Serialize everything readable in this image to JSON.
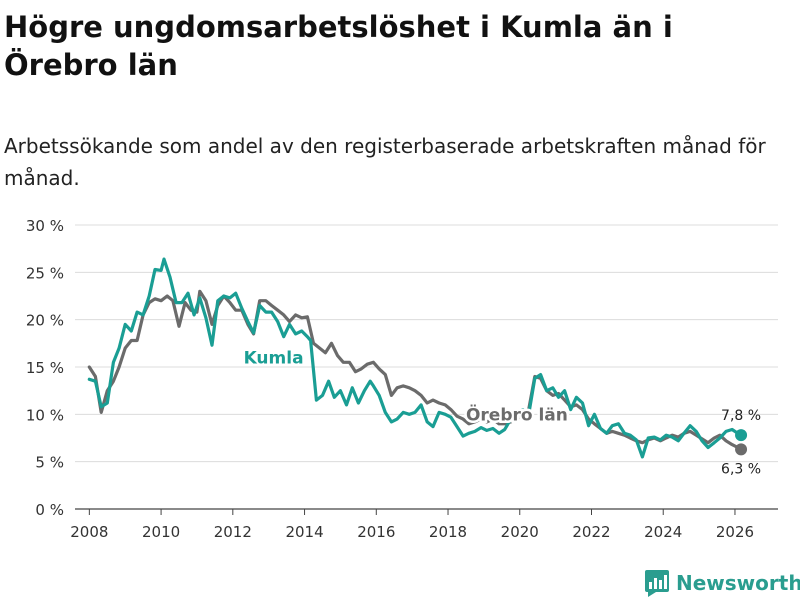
{
  "title": "Högre ungdomsarbetslöshet i Kumla än i Örebro län",
  "subtitle": "Arbetssökande som andel av den registerbaserade arbetskraften månad för månad.",
  "brand": {
    "name": "Newsworthy",
    "color": "#2a9d8f"
  },
  "chart_data": {
    "type": "line",
    "title": "Högre ungdomsarbetslöshet i Kumla än i Örebro län",
    "xlabel": "",
    "ylabel": "",
    "xlim": [
      2007.6,
      2027.2
    ],
    "ylim": [
      0,
      30
    ],
    "grid": true,
    "x_ticks": [
      2008,
      2010,
      2012,
      2014,
      2016,
      2018,
      2020,
      2022,
      2024,
      2026
    ],
    "y_ticks": [
      0,
      5,
      10,
      15,
      20,
      25,
      30
    ],
    "y_tick_labels": [
      "0 %",
      "5 %",
      "10 %",
      "15 %",
      "20 %",
      "25 %",
      "30 %"
    ],
    "end_labels": {
      "kumla": "7,8 %",
      "orebro": "6,3 %"
    },
    "series": [
      {
        "name": "Kumla",
        "color": "#1a9e94",
        "points": [
          [
            2008.0,
            13.7
          ],
          [
            2008.17,
            13.5
          ],
          [
            2008.33,
            10.8
          ],
          [
            2008.5,
            11.2
          ],
          [
            2008.67,
            15.5
          ],
          [
            2008.83,
            17.0
          ],
          [
            2009.0,
            19.5
          ],
          [
            2009.17,
            18.8
          ],
          [
            2009.33,
            20.8
          ],
          [
            2009.5,
            20.5
          ],
          [
            2009.67,
            22.5
          ],
          [
            2009.83,
            25.3
          ],
          [
            2010.0,
            25.2
          ],
          [
            2010.08,
            26.4
          ],
          [
            2010.25,
            24.5
          ],
          [
            2010.42,
            21.8
          ],
          [
            2010.58,
            21.8
          ],
          [
            2010.75,
            22.8
          ],
          [
            2010.92,
            20.5
          ],
          [
            2011.08,
            22.3
          ],
          [
            2011.25,
            20.2
          ],
          [
            2011.42,
            17.3
          ],
          [
            2011.58,
            22.0
          ],
          [
            2011.75,
            22.5
          ],
          [
            2011.92,
            22.3
          ],
          [
            2012.08,
            22.8
          ],
          [
            2012.25,
            21.2
          ],
          [
            2012.42,
            19.8
          ],
          [
            2012.58,
            18.6
          ],
          [
            2012.75,
            21.5
          ],
          [
            2012.92,
            20.8
          ],
          [
            2013.08,
            20.8
          ],
          [
            2013.25,
            19.8
          ],
          [
            2013.42,
            18.2
          ],
          [
            2013.58,
            19.5
          ],
          [
            2013.75,
            18.5
          ],
          [
            2013.92,
            18.8
          ],
          [
            2014.08,
            18.2
          ],
          [
            2014.17,
            17.8
          ],
          [
            2014.33,
            11.5
          ],
          [
            2014.5,
            12.0
          ],
          [
            2014.67,
            13.5
          ],
          [
            2014.83,
            11.8
          ],
          [
            2015.0,
            12.5
          ],
          [
            2015.17,
            11.0
          ],
          [
            2015.33,
            12.8
          ],
          [
            2015.5,
            11.2
          ],
          [
            2015.67,
            12.5
          ],
          [
            2015.83,
            13.5
          ],
          [
            2015.92,
            13.0
          ],
          [
            2016.08,
            12.0
          ],
          [
            2016.25,
            10.2
          ],
          [
            2016.42,
            9.2
          ],
          [
            2016.58,
            9.5
          ],
          [
            2016.75,
            10.2
          ],
          [
            2016.92,
            10.0
          ],
          [
            2017.08,
            10.2
          ],
          [
            2017.25,
            11.0
          ],
          [
            2017.42,
            9.2
          ],
          [
            2017.58,
            8.7
          ],
          [
            2017.75,
            10.2
          ],
          [
            2017.92,
            10.0
          ],
          [
            2018.08,
            9.7
          ],
          [
            2018.25,
            8.7
          ],
          [
            2018.42,
            7.7
          ],
          [
            2018.58,
            8.0
          ],
          [
            2018.75,
            8.2
          ],
          [
            2018.92,
            8.6
          ],
          [
            2019.08,
            8.3
          ],
          [
            2019.25,
            8.5
          ],
          [
            2019.42,
            8.0
          ],
          [
            2019.58,
            8.4
          ],
          [
            2019.75,
            9.5
          ],
          [
            2019.92,
            10.2
          ],
          [
            2020.08,
            10.5
          ],
          [
            2020.25,
            10.0
          ],
          [
            2020.42,
            13.8
          ],
          [
            2020.58,
            14.2
          ],
          [
            2020.75,
            12.5
          ],
          [
            2020.92,
            12.8
          ],
          [
            2021.08,
            11.8
          ],
          [
            2021.25,
            12.5
          ],
          [
            2021.42,
            10.5
          ],
          [
            2021.58,
            11.8
          ],
          [
            2021.75,
            11.2
          ],
          [
            2021.92,
            8.8
          ],
          [
            2022.08,
            10.0
          ],
          [
            2022.25,
            8.5
          ],
          [
            2022.42,
            8.0
          ],
          [
            2022.58,
            8.8
          ],
          [
            2022.75,
            9.0
          ],
          [
            2022.92,
            8.0
          ],
          [
            2023.08,
            7.8
          ],
          [
            2023.25,
            7.3
          ],
          [
            2023.42,
            5.5
          ],
          [
            2023.58,
            7.5
          ],
          [
            2023.75,
            7.6
          ],
          [
            2023.92,
            7.3
          ],
          [
            2024.08,
            7.8
          ],
          [
            2024.25,
            7.6
          ],
          [
            2024.42,
            7.2
          ],
          [
            2024.58,
            8.0
          ],
          [
            2024.75,
            8.8
          ],
          [
            2024.92,
            8.2
          ],
          [
            2025.08,
            7.2
          ],
          [
            2025.25,
            6.5
          ],
          [
            2025.42,
            7.0
          ],
          [
            2025.58,
            7.5
          ],
          [
            2025.75,
            8.2
          ],
          [
            2025.92,
            8.4
          ],
          [
            2026.08,
            8.0
          ],
          [
            2026.17,
            7.8
          ]
        ]
      },
      {
        "name": "Örebro län",
        "color": "#6b6b6b",
        "points": [
          [
            2008.0,
            15.0
          ],
          [
            2008.17,
            14.0
          ],
          [
            2008.33,
            10.2
          ],
          [
            2008.5,
            12.5
          ],
          [
            2008.67,
            13.5
          ],
          [
            2008.83,
            15.0
          ],
          [
            2009.0,
            17.0
          ],
          [
            2009.17,
            17.8
          ],
          [
            2009.33,
            17.8
          ],
          [
            2009.5,
            20.5
          ],
          [
            2009.67,
            21.8
          ],
          [
            2009.83,
            22.2
          ],
          [
            2010.0,
            22.0
          ],
          [
            2010.17,
            22.5
          ],
          [
            2010.33,
            22.0
          ],
          [
            2010.5,
            19.3
          ],
          [
            2010.67,
            21.8
          ],
          [
            2010.83,
            21.0
          ],
          [
            2011.0,
            20.8
          ],
          [
            2011.08,
            23.0
          ],
          [
            2011.25,
            22.0
          ],
          [
            2011.42,
            19.5
          ],
          [
            2011.58,
            21.5
          ],
          [
            2011.75,
            22.5
          ],
          [
            2011.92,
            21.8
          ],
          [
            2012.08,
            21.0
          ],
          [
            2012.25,
            21.0
          ],
          [
            2012.42,
            19.5
          ],
          [
            2012.58,
            18.5
          ],
          [
            2012.75,
            22.0
          ],
          [
            2012.92,
            22.0
          ],
          [
            2013.08,
            21.5
          ],
          [
            2013.25,
            21.0
          ],
          [
            2013.42,
            20.5
          ],
          [
            2013.58,
            19.8
          ],
          [
            2013.75,
            20.5
          ],
          [
            2013.92,
            20.2
          ],
          [
            2014.08,
            20.3
          ],
          [
            2014.25,
            17.5
          ],
          [
            2014.42,
            17.0
          ],
          [
            2014.58,
            16.5
          ],
          [
            2014.75,
            17.5
          ],
          [
            2014.92,
            16.2
          ],
          [
            2015.08,
            15.5
          ],
          [
            2015.25,
            15.5
          ],
          [
            2015.42,
            14.5
          ],
          [
            2015.58,
            14.8
          ],
          [
            2015.75,
            15.3
          ],
          [
            2015.92,
            15.5
          ],
          [
            2016.08,
            14.8
          ],
          [
            2016.25,
            14.2
          ],
          [
            2016.42,
            12.0
          ],
          [
            2016.58,
            12.8
          ],
          [
            2016.75,
            13.0
          ],
          [
            2016.92,
            12.8
          ],
          [
            2017.08,
            12.5
          ],
          [
            2017.25,
            12.0
          ],
          [
            2017.42,
            11.2
          ],
          [
            2017.58,
            11.5
          ],
          [
            2017.75,
            11.2
          ],
          [
            2017.92,
            11.0
          ],
          [
            2018.08,
            10.5
          ],
          [
            2018.25,
            9.8
          ],
          [
            2018.42,
            9.5
          ],
          [
            2018.58,
            9.0
          ],
          [
            2018.75,
            9.2
          ],
          [
            2018.92,
            9.5
          ],
          [
            2019.08,
            9.2
          ],
          [
            2019.25,
            9.5
          ],
          [
            2019.42,
            9.0
          ],
          [
            2019.58,
            9.0
          ],
          [
            2019.75,
            9.2
          ],
          [
            2019.92,
            9.5
          ],
          [
            2020.08,
            10.0
          ],
          [
            2020.25,
            10.5
          ],
          [
            2020.42,
            14.0
          ],
          [
            2020.58,
            13.8
          ],
          [
            2020.75,
            12.5
          ],
          [
            2020.92,
            12.0
          ],
          [
            2021.08,
            12.2
          ],
          [
            2021.25,
            11.5
          ],
          [
            2021.42,
            10.8
          ],
          [
            2021.58,
            11.0
          ],
          [
            2021.75,
            10.5
          ],
          [
            2021.92,
            9.5
          ],
          [
            2022.08,
            9.0
          ],
          [
            2022.25,
            8.5
          ],
          [
            2022.42,
            8.0
          ],
          [
            2022.58,
            8.2
          ],
          [
            2022.75,
            8.0
          ],
          [
            2022.92,
            7.8
          ],
          [
            2023.08,
            7.5
          ],
          [
            2023.25,
            7.2
          ],
          [
            2023.42,
            7.0
          ],
          [
            2023.58,
            7.3
          ],
          [
            2023.75,
            7.5
          ],
          [
            2023.92,
            7.2
          ],
          [
            2024.08,
            7.5
          ],
          [
            2024.25,
            7.8
          ],
          [
            2024.42,
            7.6
          ],
          [
            2024.58,
            8.0
          ],
          [
            2024.75,
            8.2
          ],
          [
            2024.92,
            7.8
          ],
          [
            2025.08,
            7.4
          ],
          [
            2025.25,
            7.0
          ],
          [
            2025.42,
            7.5
          ],
          [
            2025.58,
            7.8
          ],
          [
            2025.75,
            7.2
          ],
          [
            2025.92,
            6.8
          ],
          [
            2026.08,
            6.5
          ],
          [
            2026.17,
            6.3
          ]
        ]
      }
    ]
  }
}
